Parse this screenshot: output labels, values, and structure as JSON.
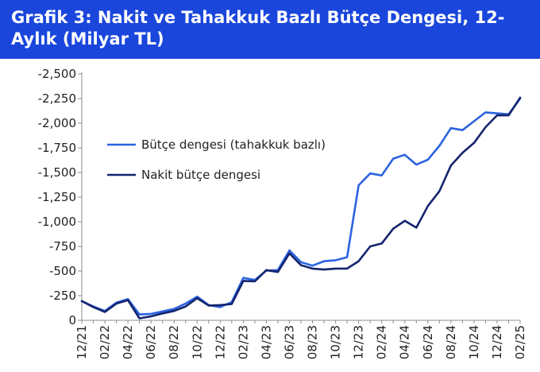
{
  "header": {
    "title": "Grafik 3: Nakit ve Tahakkuk Bazlı Bütçe Dengesi, 12-Aylık (Milyar TL)"
  },
  "colors": {
    "title_background": "#1a46dc",
    "title_text": "#ffffff",
    "series_accrual": "#2b63e0",
    "series_cash": "#14246e"
  },
  "chart_data": {
    "type": "line",
    "title": "Grafik 3: Nakit ve Tahakkuk Bazlı Bütçe Dengesi, 12-Aylık (Milyar TL)",
    "xlabel": "",
    "ylabel": "",
    "ylim": [
      0,
      -2500
    ],
    "y_ticks": [
      "-2,500",
      "-2,250",
      "-2,000",
      "-1,750",
      "-1,500",
      "-1,250",
      "-1,000",
      "-750",
      "-500",
      "-250",
      "0"
    ],
    "x_tick_labels": [
      "12/21",
      "02/22",
      "04/22",
      "06/22",
      "08/22",
      "10/22",
      "12/22",
      "02/23",
      "04/23",
      "06/23",
      "08/23",
      "10/23",
      "12/23",
      "02/24",
      "04/24",
      "06/24",
      "08/24",
      "10/24",
      "12/24",
      "02/25"
    ],
    "x": [
      "12/21",
      "01/22",
      "02/22",
      "03/22",
      "04/22",
      "05/22",
      "06/22",
      "07/22",
      "08/22",
      "09/22",
      "10/22",
      "11/22",
      "12/22",
      "01/23",
      "02/23",
      "03/23",
      "04/23",
      "05/23",
      "06/23",
      "07/23",
      "08/23",
      "09/23",
      "10/23",
      "11/23",
      "12/23",
      "01/24",
      "02/24",
      "03/24",
      "04/24",
      "05/24",
      "06/24",
      "07/24",
      "08/24",
      "09/24",
      "10/24",
      "11/24",
      "12/24",
      "01/25",
      "02/25"
    ],
    "grid": false,
    "legend_position": "center-left",
    "series": [
      {
        "name": "Bütçe dengesi (tahakkuk bazlı)",
        "values": [
          -195,
          -140,
          -95,
          -180,
          -215,
          -60,
          -65,
          -90,
          -115,
          -170,
          -240,
          -155,
          -135,
          -185,
          -430,
          -410,
          -505,
          -510,
          -710,
          -590,
          -555,
          -600,
          -610,
          -640,
          -1370,
          -1490,
          -1470,
          -1640,
          -1680,
          -1580,
          -1630,
          -1770,
          -1950,
          -1930,
          -2020,
          -2110,
          -2100,
          -2090,
          -2250
        ]
      },
      {
        "name": "Nakit bütçe dengesi",
        "values": [
          -195,
          -135,
          -85,
          -170,
          -205,
          -20,
          -40,
          -70,
          -95,
          -140,
          -225,
          -150,
          -155,
          -165,
          -400,
          -395,
          -510,
          -490,
          -680,
          -560,
          -525,
          -515,
          -525,
          -525,
          -600,
          -750,
          -780,
          -930,
          -1010,
          -940,
          -1160,
          -1310,
          -1570,
          -1700,
          -1800,
          -1960,
          -2080,
          -2080,
          -2260
        ]
      }
    ]
  }
}
